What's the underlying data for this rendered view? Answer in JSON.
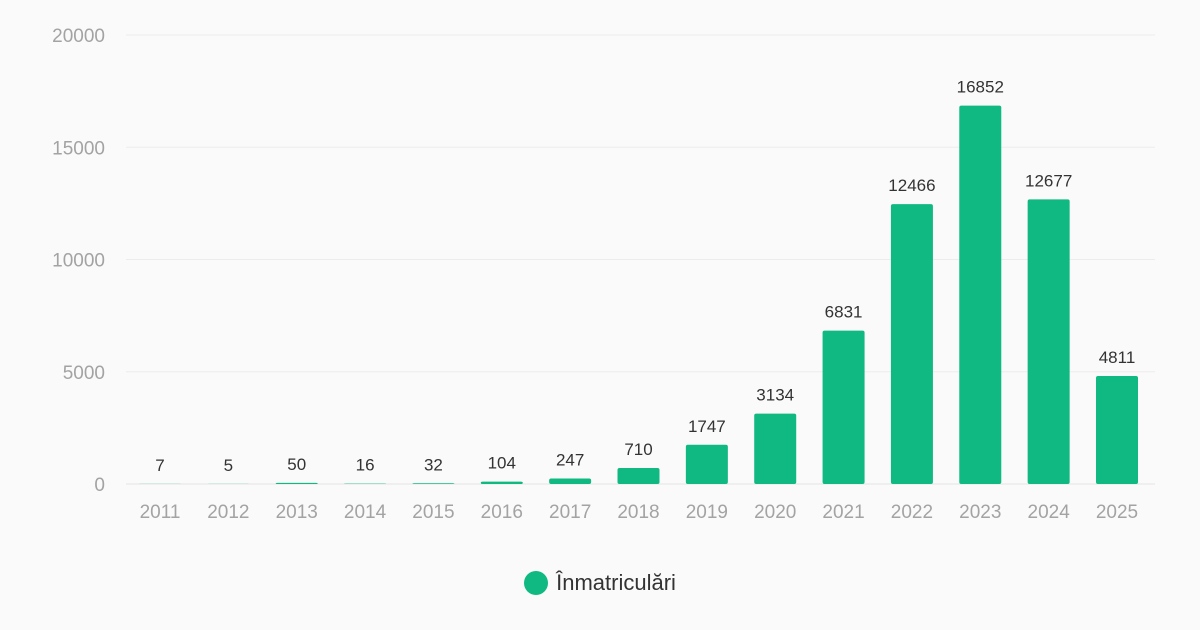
{
  "chart_data": {
    "type": "bar",
    "categories": [
      "2011",
      "2012",
      "2013",
      "2014",
      "2015",
      "2016",
      "2017",
      "2018",
      "2019",
      "2020",
      "2021",
      "2022",
      "2023",
      "2024",
      "2025"
    ],
    "series": [
      {
        "name": "Înmatriculări",
        "values": [
          7,
          5,
          50,
          16,
          32,
          104,
          247,
          710,
          1747,
          3134,
          6831,
          12466,
          16852,
          12677,
          4811
        ],
        "color": "#10b981"
      }
    ],
    "yticks": [
      0,
      5000,
      10000,
      15000,
      20000
    ],
    "ylim": [
      0,
      20000
    ],
    "grid": true,
    "legend_position": "bottom-center",
    "data_labels": true
  }
}
